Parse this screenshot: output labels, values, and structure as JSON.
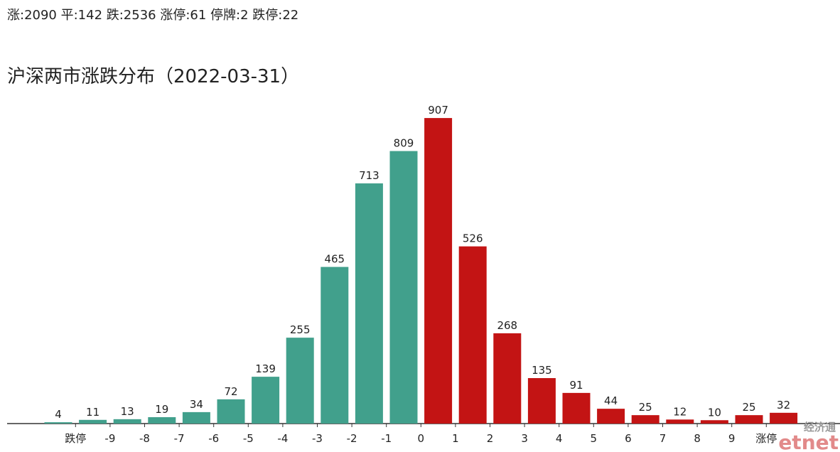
{
  "chart_data": {
    "type": "bar",
    "subtitle": "涨:2090 平:142 跌:2536 涨停:61 停牌:2 跌停:22",
    "title": "沪深两市涨跌分布（2022-03-31）",
    "categories": [
      null,
      null,
      null,
      null,
      null,
      null,
      null,
      null,
      null,
      null,
      null,
      null,
      null,
      null,
      null,
      null,
      null,
      null,
      null,
      null,
      null,
      null
    ],
    "values": [
      4,
      11,
      13,
      19,
      34,
      72,
      139,
      255,
      465,
      713,
      809,
      907,
      526,
      268,
      135,
      91,
      44,
      25,
      12,
      10,
      25,
      32
    ],
    "colors": [
      "#41a08c",
      "#41a08c",
      "#41a08c",
      "#41a08c",
      "#41a08c",
      "#41a08c",
      "#41a08c",
      "#41a08c",
      "#41a08c",
      "#41a08c",
      "#41a08c",
      "#c31414",
      "#c31414",
      "#c31414",
      "#c31414",
      "#c31414",
      "#c31414",
      "#c31414",
      "#c31414",
      "#c31414",
      "#c31414",
      "#c31414"
    ],
    "boundary_labels": [
      "跌停",
      "-9",
      "-8",
      "-7",
      "-6",
      "-5",
      "-4",
      "-3",
      "-2",
      "-1",
      "0",
      "1",
      "2",
      "3",
      "4",
      "5",
      "6",
      "7",
      "8",
      "9",
      "涨停"
    ],
    "ylim": [
      0,
      1000
    ],
    "watermark": [
      "经济通",
      "etnet"
    ]
  }
}
